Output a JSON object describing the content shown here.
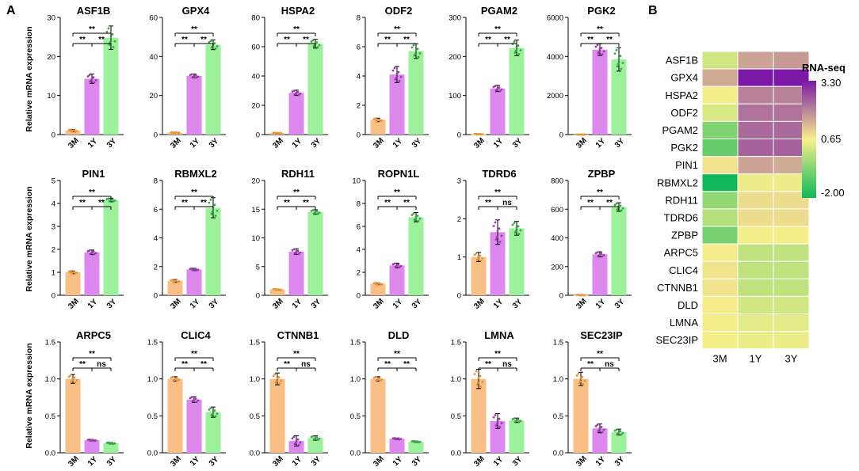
{
  "panel_labels": {
    "a": "A",
    "b": "B"
  },
  "y_axis_label": "Relative mRNA expression",
  "colors": {
    "3M": "#f9bf85",
    "1Y": "#dd88ef",
    "3Y": "#9bf29a",
    "dot_3M": "#e8923a",
    "dot_1Y": "#9b3aa8",
    "dot_3Y": "#3aa64a"
  },
  "chart_data": [
    {
      "type": "bar",
      "panel": "A",
      "categories": [
        "3M",
        "1Y",
        "3Y"
      ],
      "ylabel": "Relative mRNA expression",
      "genes": [
        {
          "title": "ASF1B",
          "ylim": [
            0,
            30
          ],
          "ticks": [
            0,
            10,
            20,
            30
          ],
          "values": [
            1,
            14.3,
            24.8
          ],
          "err": [
            0.3,
            1.2,
            3.0
          ],
          "comparisons": [
            [
              "3M",
              "1Y",
              "**"
            ],
            [
              "1Y",
              "3Y",
              "**"
            ],
            [
              "3M",
              "3Y",
              "**"
            ]
          ]
        },
        {
          "title": "GPX4",
          "ylim": [
            0,
            60
          ],
          "ticks": [
            0,
            20,
            40,
            60
          ],
          "values": [
            1,
            30,
            46
          ],
          "err": [
            0.2,
            1.0,
            2.5
          ],
          "comparisons": [
            [
              "3M",
              "1Y",
              "**"
            ],
            [
              "1Y",
              "3Y",
              "**"
            ],
            [
              "3M",
              "3Y",
              "**"
            ]
          ]
        },
        {
          "title": "HSPA2",
          "ylim": [
            0,
            80
          ],
          "ticks": [
            0,
            20,
            40,
            60,
            80
          ],
          "values": [
            1,
            28.5,
            62
          ],
          "err": [
            0.3,
            1.8,
            3.0
          ],
          "comparisons": [
            [
              "3M",
              "1Y",
              "**"
            ],
            [
              "1Y",
              "3Y",
              "**"
            ],
            [
              "3M",
              "3Y",
              "**"
            ]
          ]
        },
        {
          "title": "ODF2",
          "ylim": [
            0,
            8
          ],
          "ticks": [
            0,
            2,
            4,
            6,
            8
          ],
          "values": [
            1,
            4.1,
            5.7
          ],
          "err": [
            0.12,
            0.55,
            0.5
          ],
          "comparisons": [
            [
              "3M",
              "1Y",
              "**"
            ],
            [
              "1Y",
              "3Y",
              "**"
            ],
            [
              "3M",
              "3Y",
              "**"
            ]
          ]
        },
        {
          "title": "PGAM2",
          "ylim": [
            0,
            300
          ],
          "ticks": [
            0,
            100,
            200,
            300
          ],
          "values": [
            1,
            118,
            222
          ],
          "err": [
            1,
            8,
            20
          ],
          "comparisons": [
            [
              "3M",
              "1Y",
              "**"
            ],
            [
              "1Y",
              "3Y",
              "**"
            ],
            [
              "3M",
              "3Y",
              "**"
            ]
          ]
        },
        {
          "title": "PGK2",
          "ylim": [
            0,
            6000
          ],
          "ticks": [
            0,
            2000,
            4000,
            6000
          ],
          "values": [
            1,
            4350,
            3850
          ],
          "err": [
            5,
            300,
            600
          ],
          "comparisons": [
            [
              "3M",
              "1Y",
              "**"
            ],
            [
              "1Y",
              "3Y",
              "**"
            ],
            [
              "3M",
              "3Y",
              "**"
            ]
          ]
        },
        {
          "title": "PIN1",
          "ylim": [
            0,
            5
          ],
          "ticks": [
            0,
            1,
            2,
            3,
            4,
            5
          ],
          "values": [
            1,
            1.87,
            4.15
          ],
          "err": [
            0.06,
            0.1,
            0.08
          ],
          "comparisons": [
            [
              "3M",
              "1Y",
              "**"
            ],
            [
              "1Y",
              "3Y",
              "**"
            ],
            [
              "3M",
              "3Y",
              "**"
            ]
          ]
        },
        {
          "title": "RBMXL2",
          "ylim": [
            0,
            8
          ],
          "ticks": [
            0,
            2,
            4,
            6,
            8
          ],
          "values": [
            1,
            1.8,
            6.1
          ],
          "err": [
            0.1,
            0.08,
            0.7
          ],
          "comparisons": [
            [
              "3M",
              "1Y",
              "**"
            ],
            [
              "1Y",
              "3Y",
              "**"
            ],
            [
              "3M",
              "3Y",
              "**"
            ]
          ]
        },
        {
          "title": "RDH11",
          "ylim": [
            0,
            20
          ],
          "ticks": [
            0,
            5,
            10,
            15,
            20
          ],
          "values": [
            1,
            7.6,
            14.5
          ],
          "err": [
            0.1,
            0.5,
            0.4
          ],
          "comparisons": [
            [
              "3M",
              "1Y",
              "**"
            ],
            [
              "1Y",
              "3Y",
              "**"
            ],
            [
              "3M",
              "3Y",
              "**"
            ]
          ]
        },
        {
          "title": "ROPN1L",
          "ylim": [
            0,
            10
          ],
          "ticks": [
            0,
            2,
            4,
            6,
            8,
            10
          ],
          "values": [
            1,
            2.6,
            6.8
          ],
          "err": [
            0.08,
            0.2,
            0.4
          ],
          "comparisons": [
            [
              "3M",
              "1Y",
              "**"
            ],
            [
              "1Y",
              "3Y",
              "**"
            ],
            [
              "3M",
              "3Y",
              "**"
            ]
          ]
        },
        {
          "title": "TDRD6",
          "ylim": [
            0,
            3
          ],
          "ticks": [
            0,
            1,
            2,
            3
          ],
          "values": [
            1,
            1.65,
            1.75
          ],
          "err": [
            0.12,
            0.32,
            0.18
          ],
          "comparisons": [
            [
              "3M",
              "1Y",
              "**"
            ],
            [
              "1Y",
              "3Y",
              "ns"
            ],
            [
              "3M",
              "3Y",
              "**"
            ]
          ]
        },
        {
          "title": "ZPBP",
          "ylim": [
            0,
            800
          ],
          "ticks": [
            0,
            200,
            400,
            600,
            800
          ],
          "values": [
            1,
            285,
            615
          ],
          "err": [
            2,
            18,
            30
          ],
          "comparisons": [
            [
              "3M",
              "1Y",
              "**"
            ],
            [
              "1Y",
              "3Y",
              "**"
            ],
            [
              "3M",
              "3Y",
              "**"
            ]
          ]
        },
        {
          "title": "ARPC5",
          "ylim": [
            0,
            1.5
          ],
          "ticks": [
            "0.0",
            "0.5",
            "1.0",
            "1.5"
          ],
          "values": [
            1,
            0.17,
            0.13
          ],
          "err": [
            0.06,
            0.01,
            0.01
          ],
          "comparisons": [
            [
              "3M",
              "1Y",
              "**"
            ],
            [
              "1Y",
              "3Y",
              "ns"
            ],
            [
              "3M",
              "3Y",
              "**"
            ]
          ]
        },
        {
          "title": "CLIC4",
          "ylim": [
            0,
            1.5
          ],
          "ticks": [
            "0.0",
            "0.5",
            "1.0",
            "1.5"
          ],
          "values": [
            1,
            0.72,
            0.55
          ],
          "err": [
            0.03,
            0.04,
            0.07
          ],
          "comparisons": [
            [
              "3M",
              "1Y",
              "**"
            ],
            [
              "1Y",
              "3Y",
              "**"
            ],
            [
              "3M",
              "3Y",
              "**"
            ]
          ]
        },
        {
          "title": "CTNNB1",
          "ylim": [
            0,
            1.5
          ],
          "ticks": [
            "0.0",
            "0.5",
            "1.0",
            "1.5"
          ],
          "values": [
            1,
            0.16,
            0.2
          ],
          "err": [
            0.08,
            0.07,
            0.03
          ],
          "comparisons": [
            [
              "3M",
              "1Y",
              "**"
            ],
            [
              "1Y",
              "3Y",
              "ns"
            ],
            [
              "3M",
              "3Y",
              "**"
            ]
          ]
        },
        {
          "title": "DLD",
          "ylim": [
            0,
            1.5
          ],
          "ticks": [
            "0.0",
            "0.5",
            "1.0",
            "1.5"
          ],
          "values": [
            1,
            0.19,
            0.15
          ],
          "err": [
            0.03,
            0.01,
            0.01
          ],
          "comparisons": [
            [
              "3M",
              "1Y",
              "**"
            ],
            [
              "1Y",
              "3Y",
              "**"
            ],
            [
              "3M",
              "3Y",
              "**"
            ]
          ]
        },
        {
          "title": "LMNA",
          "ylim": [
            0,
            1.5
          ],
          "ticks": [
            "0.0",
            "0.5",
            "1.0",
            "1.5"
          ],
          "values": [
            1,
            0.43,
            0.44
          ],
          "err": [
            0.13,
            0.1,
            0.03
          ],
          "comparisons": [
            [
              "3M",
              "1Y",
              "**"
            ],
            [
              "1Y",
              "3Y",
              "ns"
            ],
            [
              "3M",
              "3Y",
              "**"
            ]
          ]
        },
        {
          "title": "SEC23IP",
          "ylim": [
            0,
            1.5
          ],
          "ticks": [
            "0.0",
            "0.5",
            "1.0",
            "1.5"
          ],
          "values": [
            1,
            0.33,
            0.28
          ],
          "err": [
            0.09,
            0.06,
            0.04
          ],
          "comparisons": [
            [
              "3M",
              "1Y",
              "**"
            ],
            [
              "1Y",
              "3Y",
              "ns"
            ],
            [
              "3M",
              "3Y",
              "**"
            ]
          ]
        }
      ]
    },
    {
      "type": "heatmap",
      "panel": "B",
      "legend_title": "RNA-seq",
      "scale": [
        -2.0,
        0.65,
        3.3
      ],
      "scale_labels": [
        "3.30",
        "0.65",
        "-2.00"
      ],
      "columns": [
        "3M",
        "1Y",
        "3Y"
      ],
      "rows": [
        "ASF1B",
        "GPX4",
        "HSPA2",
        "ODF2",
        "PGAM2",
        "PGK2",
        "PIN1",
        "RBMXL2",
        "RDH11",
        "TDRD6",
        "ZPBP",
        "ARPC5",
        "CLIC4",
        "CTNNB1",
        "DLD",
        "LMNA",
        "SEC23IP"
      ],
      "values": [
        [
          0.2,
          1.6,
          1.7
        ],
        [
          1.5,
          3.3,
          3.3
        ],
        [
          0.6,
          2.0,
          2.0
        ],
        [
          0.3,
          2.2,
          2.2
        ],
        [
          -0.7,
          2.3,
          2.3
        ],
        [
          -1.0,
          2.4,
          2.4
        ],
        [
          0.8,
          1.6,
          1.5
        ],
        [
          -2.0,
          0.5,
          0.5
        ],
        [
          -0.5,
          0.9,
          0.9
        ],
        [
          -0.1,
          0.9,
          0.9
        ],
        [
          -0.8,
          0.6,
          0.6
        ],
        [
          0.7,
          0.0,
          0.0
        ],
        [
          0.8,
          0.0,
          0.0
        ],
        [
          0.8,
          0.0,
          0.0
        ],
        [
          0.7,
          0.2,
          0.2
        ],
        [
          0.6,
          0.4,
          0.4
        ],
        [
          0.6,
          0.5,
          0.5
        ]
      ]
    }
  ]
}
